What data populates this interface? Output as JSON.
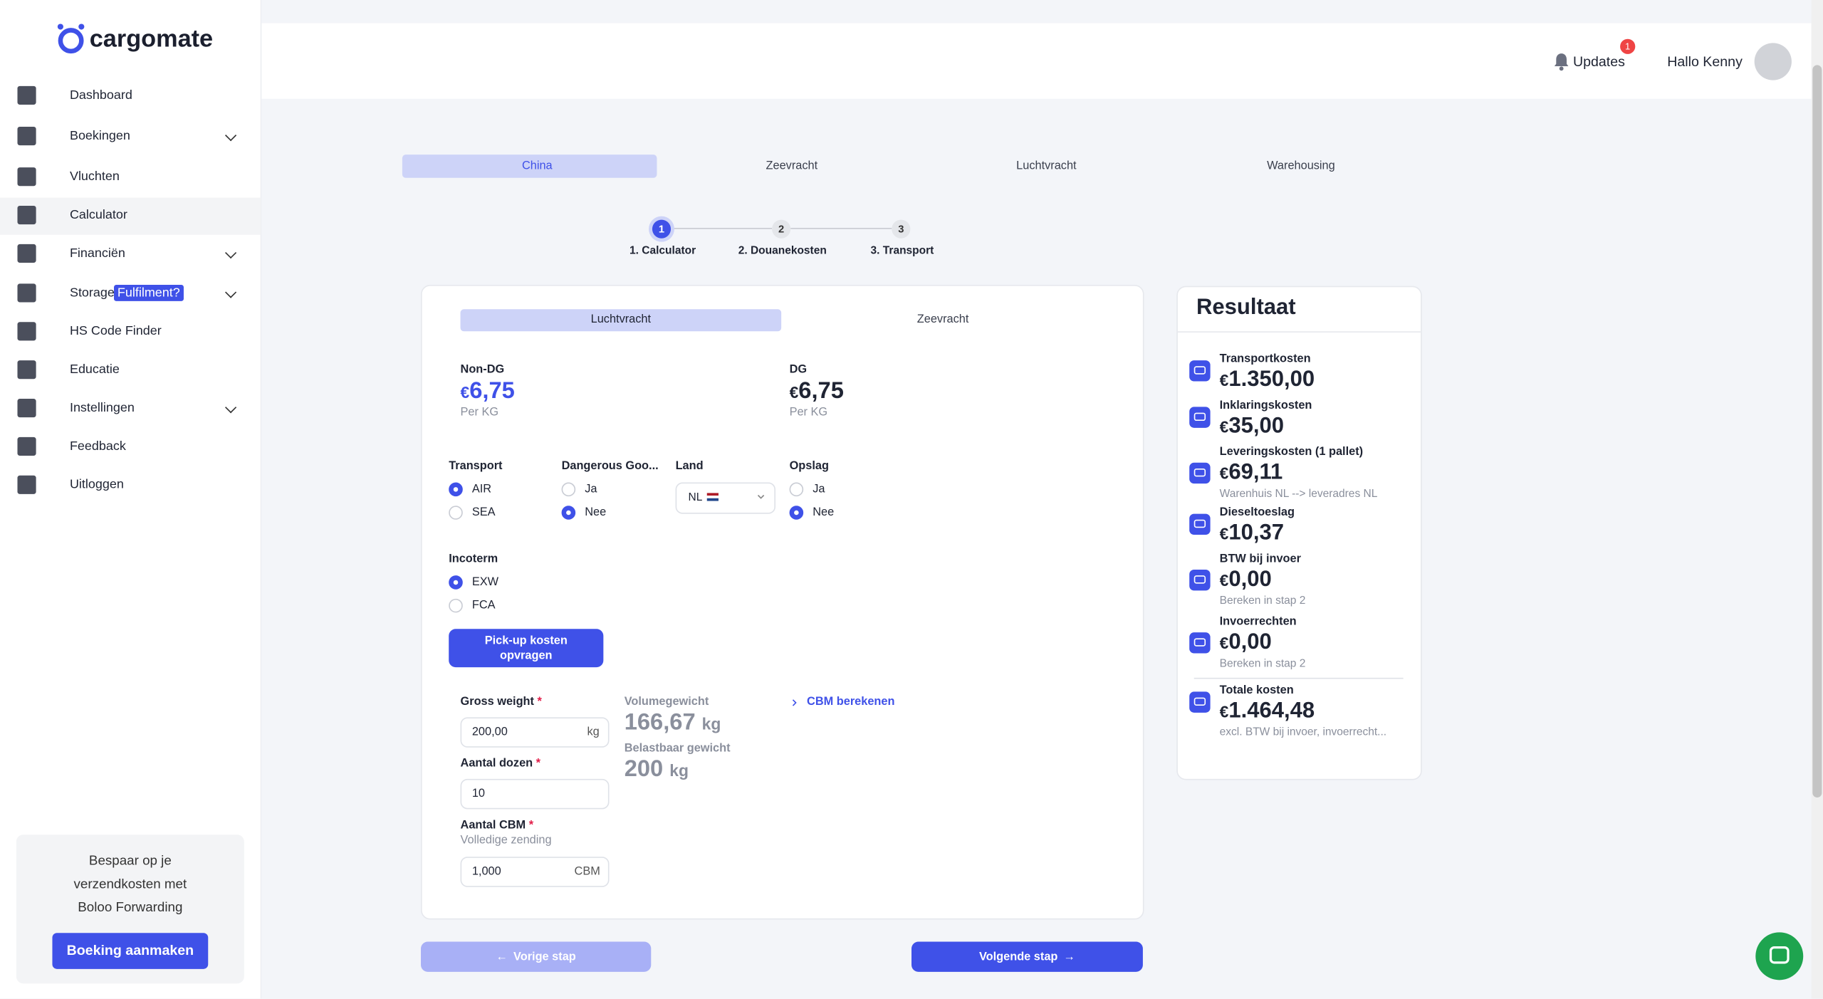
{
  "sidebar": {
    "logo": "cargomate",
    "menu": [
      {
        "label": "Dashboard"
      },
      {
        "label": "Boekingen"
      },
      {
        "label": "Vluchten"
      },
      {
        "label": "Calculator"
      },
      {
        "label": "Financiën"
      },
      {
        "label": "Storage",
        "badge": "Fulfilment?"
      },
      {
        "label": "HS Code Finder"
      },
      {
        "label": "Educatie"
      },
      {
        "label": "Instellingen"
      },
      {
        "label": "Feedback"
      },
      {
        "label": "Uitloggen"
      }
    ],
    "promo": {
      "lines": [
        "Bespaar op je",
        "verzendkosten met",
        "Boloo Forwarding"
      ],
      "button": "Boeking aanmaken"
    }
  },
  "header": {
    "updates": "Updates",
    "updates_count": "1",
    "greeting": "Hallo Kenny"
  },
  "tabs": [
    "China",
    "Zeevracht",
    "Luchtvracht",
    "Warehousing"
  ],
  "steps": [
    {
      "number": "1",
      "label": "1. Calculator"
    },
    {
      "number": "2",
      "label": "2. Douanekosten"
    },
    {
      "number": "3",
      "label": "3. Transport"
    }
  ],
  "form": {
    "currency": "€",
    "modes": [
      "Luchtvracht",
      "Zeevracht"
    ],
    "prices": [
      {
        "label": "Non-DG",
        "amount": "6,75",
        "unit": "Per KG"
      },
      {
        "label": "DG",
        "amount": "6,75",
        "unit": "Per KG"
      }
    ],
    "transport": {
      "label": "Transport",
      "options": [
        "AIR",
        "SEA"
      ]
    },
    "dangerous_goods": {
      "label": "Dangerous Goo...",
      "options": [
        "Ja",
        "Nee"
      ]
    },
    "land": {
      "label": "Land",
      "value": "NL"
    },
    "opslag": {
      "label": "Opslag",
      "options": [
        "Ja",
        "Nee"
      ]
    },
    "incoterm": {
      "label": "Incoterm",
      "options": [
        "EXW",
        "FCA"
      ]
    },
    "pickup_button": "Pick-up kosten opvragen",
    "required": "*",
    "gross_weight": {
      "label": "Gross weight",
      "value": "200,00",
      "unit": "kg"
    },
    "boxes": {
      "label": "Aantal dozen",
      "value": "10"
    },
    "cbm": {
      "label": "Aantal CBM",
      "hint": "Volledige zending",
      "value": "1,000",
      "unit": "CBM"
    },
    "volume_weight": {
      "label": "Volumegewicht",
      "value": "166,67",
      "unit": "kg"
    },
    "chargeable_weight": {
      "label": "Belastbaar gewicht",
      "value": "200",
      "unit": "kg"
    },
    "cbm_link": "CBM berekenen"
  },
  "result": {
    "title": "Resultaat",
    "items": [
      {
        "label": "Transportkosten",
        "amount": "1.350,00"
      },
      {
        "label": "Inklaringskosten",
        "amount": "35,00"
      },
      {
        "label": "Leveringskosten (1 pallet)",
        "amount": "69,11",
        "note": "Warenhuis NL --> leveradres NL"
      },
      {
        "label": "Dieseltoeslag",
        "amount": "10,37"
      },
      {
        "label": "BTW bij invoer",
        "amount": "0,00",
        "note": "Bereken in stap 2"
      },
      {
        "label": "Invoerrechten",
        "amount": "0,00",
        "note": "Bereken in stap 2"
      },
      {
        "label": "Totale kosten",
        "amount": "1.464,48",
        "note": "excl. BTW bij invoer, invoerrecht..."
      }
    ]
  },
  "footer": {
    "prev": "Vorige stap",
    "next": "Volgende stap"
  }
}
